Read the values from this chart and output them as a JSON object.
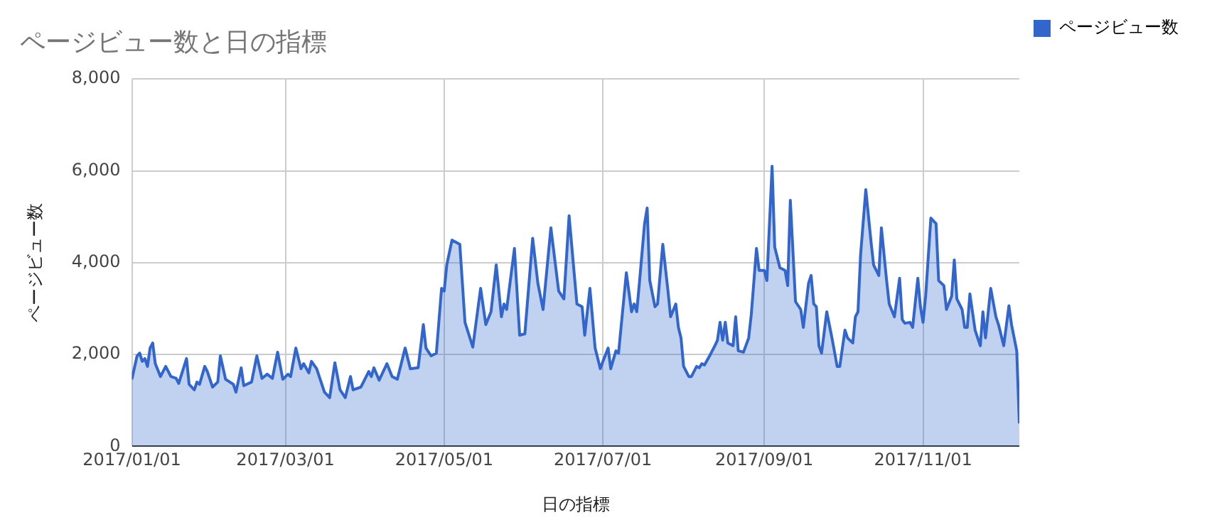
{
  "chart_data": {
    "type": "area",
    "title": "ページビュー数と日の指標",
    "xlabel": "日の指標",
    "ylabel": "ページビュー数",
    "xlim": [
      "2017-01-01",
      "2017-12-08"
    ],
    "xticks": [
      {
        "value": "2017-01-01",
        "label": "2017/01/01"
      },
      {
        "value": "2017-03-01",
        "label": "2017/03/01"
      },
      {
        "value": "2017-05-01",
        "label": "2017/05/01"
      },
      {
        "value": "2017-07-01",
        "label": "2017/07/01"
      },
      {
        "value": "2017-09-01",
        "label": "2017/09/01"
      },
      {
        "value": "2017-11-01",
        "label": "2017/11/01"
      }
    ],
    "ylim": [
      0,
      8000
    ],
    "yticks": [
      {
        "value": 0,
        "label": "0"
      },
      {
        "value": 2000,
        "label": "2,000"
      },
      {
        "value": 4000,
        "label": "4,000"
      },
      {
        "value": 6000,
        "label": "6,000"
      },
      {
        "value": 8000,
        "label": "8,000"
      }
    ],
    "grid": true,
    "legend": "top right",
    "marker": "none",
    "line_style": "solid",
    "x": [
      "2017-01-01",
      "2017-01-03",
      "2017-01-04",
      "2017-01-05",
      "2017-01-06",
      "2017-01-07",
      "2017-01-08",
      "2017-01-09",
      "2017-01-10",
      "2017-01-12",
      "2017-01-14",
      "2017-01-16",
      "2017-01-18",
      "2017-01-19",
      "2017-01-22",
      "2017-01-23",
      "2017-01-25",
      "2017-01-26",
      "2017-01-27",
      "2017-01-29",
      "2017-01-30",
      "2017-02-01",
      "2017-02-03",
      "2017-02-04",
      "2017-02-06",
      "2017-02-09",
      "2017-02-10",
      "2017-02-12",
      "2017-02-13",
      "2017-02-16",
      "2017-02-18",
      "2017-02-20",
      "2017-02-22",
      "2017-02-24",
      "2017-02-26",
      "2017-02-28",
      "2017-03-02",
      "2017-03-03",
      "2017-03-05",
      "2017-03-07",
      "2017-03-08",
      "2017-03-10",
      "2017-03-11",
      "2017-03-13",
      "2017-03-14",
      "2017-03-16",
      "2017-03-18",
      "2017-03-20",
      "2017-03-22",
      "2017-03-24",
      "2017-03-26",
      "2017-03-27",
      "2017-03-30",
      "2017-04-02",
      "2017-04-03",
      "2017-04-04",
      "2017-04-06",
      "2017-04-09",
      "2017-04-11",
      "2017-04-13",
      "2017-04-16",
      "2017-04-18",
      "2017-04-21",
      "2017-04-23",
      "2017-04-24",
      "2017-04-26",
      "2017-04-28",
      "2017-04-30",
      "2017-05-01",
      "2017-05-02",
      "2017-05-04",
      "2017-05-07",
      "2017-05-09",
      "2017-05-12",
      "2017-05-15",
      "2017-05-17",
      "2017-05-19",
      "2017-05-21",
      "2017-05-23",
      "2017-05-24",
      "2017-05-25",
      "2017-05-28",
      "2017-05-30",
      "2017-06-01",
      "2017-06-04",
      "2017-06-06",
      "2017-06-08",
      "2017-06-11",
      "2017-06-14",
      "2017-06-16",
      "2017-06-18",
      "2017-06-21",
      "2017-06-23",
      "2017-06-24",
      "2017-06-26",
      "2017-06-28",
      "2017-06-30",
      "2017-07-01",
      "2017-07-03",
      "2017-07-04",
      "2017-07-06",
      "2017-07-07",
      "2017-07-10",
      "2017-07-12",
      "2017-07-13",
      "2017-07-14",
      "2017-07-15",
      "2017-07-17",
      "2017-07-18",
      "2017-07-19",
      "2017-07-21",
      "2017-07-22",
      "2017-07-24",
      "2017-07-26",
      "2017-07-27",
      "2017-07-29",
      "2017-07-30",
      "2017-07-31",
      "2017-08-01",
      "2017-08-03",
      "2017-08-04",
      "2017-08-06",
      "2017-08-07",
      "2017-08-08",
      "2017-08-09",
      "2017-08-11",
      "2017-08-13",
      "2017-08-14",
      "2017-08-15",
      "2017-08-16",
      "2017-08-17",
      "2017-08-18",
      "2017-08-20",
      "2017-08-21",
      "2017-08-22",
      "2017-08-24",
      "2017-08-26",
      "2017-08-27",
      "2017-08-29",
      "2017-08-30",
      "2017-09-01",
      "2017-09-02",
      "2017-09-04",
      "2017-09-05",
      "2017-09-07",
      "2017-09-09",
      "2017-09-10",
      "2017-09-11",
      "2017-09-13",
      "2017-09-15",
      "2017-09-16",
      "2017-09-18",
      "2017-09-19",
      "2017-09-20",
      "2017-09-21",
      "2017-09-22",
      "2017-09-23",
      "2017-09-25",
      "2017-09-27",
      "2017-09-29",
      "2017-09-30",
      "2017-10-02",
      "2017-10-03",
      "2017-10-05",
      "2017-10-06",
      "2017-10-07",
      "2017-10-08",
      "2017-10-10",
      "2017-10-12",
      "2017-10-13",
      "2017-10-15",
      "2017-10-16",
      "2017-10-18",
      "2017-10-19",
      "2017-10-21",
      "2017-10-23",
      "2017-10-24",
      "2017-10-25",
      "2017-10-27",
      "2017-10-28",
      "2017-10-30",
      "2017-10-31",
      "2017-11-01",
      "2017-11-02",
      "2017-11-04",
      "2017-11-06",
      "2017-11-07",
      "2017-11-09",
      "2017-11-10",
      "2017-11-12",
      "2017-11-13",
      "2017-11-14",
      "2017-11-16",
      "2017-11-17",
      "2017-11-18",
      "2017-11-19",
      "2017-11-21",
      "2017-11-23",
      "2017-11-24",
      "2017-11-25",
      "2017-11-27",
      "2017-11-29",
      "2017-11-30",
      "2017-12-02",
      "2017-12-04",
      "2017-12-05",
      "2017-12-07",
      "2017-12-08"
    ],
    "series": [
      {
        "name": "ページビュー数",
        "color": "#3366cc",
        "values": [
          1460,
          1970,
          2030,
          1850,
          1910,
          1740,
          2140,
          2250,
          1800,
          1520,
          1740,
          1520,
          1480,
          1370,
          1910,
          1350,
          1230,
          1400,
          1350,
          1740,
          1630,
          1290,
          1400,
          1970,
          1460,
          1350,
          1180,
          1710,
          1320,
          1400,
          1970,
          1480,
          1570,
          1480,
          2050,
          1460,
          1570,
          1520,
          2140,
          1690,
          1800,
          1600,
          1850,
          1690,
          1520,
          1180,
          1060,
          1820,
          1230,
          1060,
          1520,
          1230,
          1290,
          1630,
          1520,
          1710,
          1440,
          1800,
          1520,
          1460,
          2140,
          1690,
          1710,
          2650,
          2140,
          1970,
          2030,
          3440,
          3380,
          3950,
          4490,
          4400,
          2700,
          2160,
          3440,
          2650,
          2930,
          3950,
          2820,
          3100,
          2980,
          4310,
          2420,
          2450,
          4530,
          3550,
          2980,
          4760,
          3380,
          3210,
          5020,
          3100,
          3040,
          2420,
          3440,
          2140,
          1690,
          1850,
          2140,
          1690,
          2080,
          2030,
          3780,
          2930,
          3100,
          2930,
          3550,
          4850,
          5190,
          3610,
          3040,
          3100,
          4400,
          3380,
          2820,
          3100,
          2590,
          2360,
          1740,
          1520,
          1520,
          1740,
          1710,
          1800,
          1770,
          1970,
          2190,
          2310,
          2700,
          2310,
          2700,
          2250,
          2190,
          2820,
          2080,
          2050,
          2360,
          2870,
          4310,
          3830,
          3830,
          3610,
          6100,
          4340,
          3890,
          3830,
          3500,
          5360,
          3150,
          2980,
          2590,
          3550,
          3720,
          3100,
          3040,
          2190,
          2030,
          2930,
          2360,
          1740,
          1740,
          2530,
          2360,
          2250,
          2820,
          2930,
          4170,
          5590,
          4460,
          3950,
          3720,
          4760,
          3610,
          3100,
          2820,
          3660,
          2760,
          2680,
          2700,
          2590,
          3660,
          3040,
          2700,
          3270,
          4970,
          4850,
          3610,
          3500,
          2980,
          3270,
          4060,
          3210,
          2980,
          2590,
          2590,
          3320,
          2530,
          2190,
          2930,
          2360,
          3440,
          2820,
          2650,
          2190,
          3060,
          2650,
          2080,
          500
        ]
      }
    ]
  }
}
